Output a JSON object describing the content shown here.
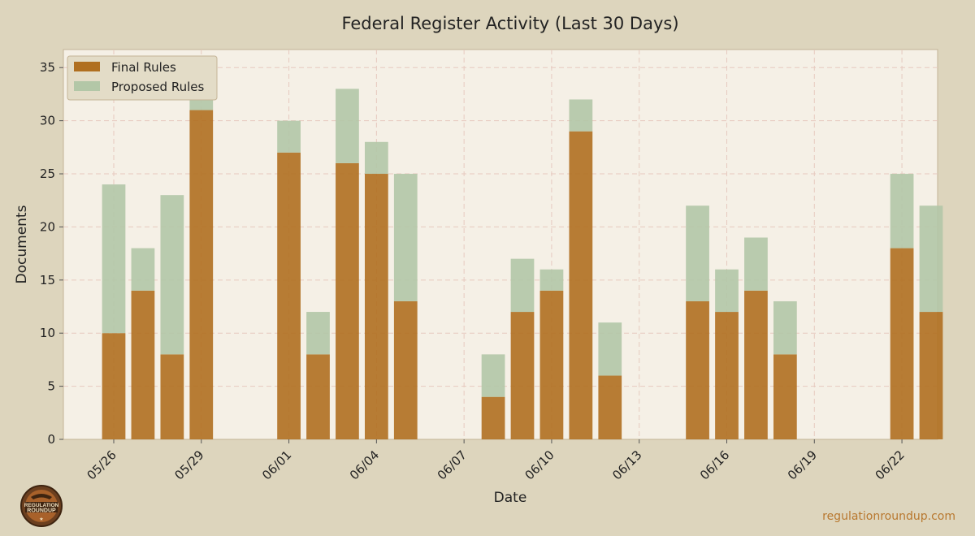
{
  "chart_data": {
    "type": "bar",
    "stacked": true,
    "title": "Federal Register Activity (Last 30 Days)",
    "xlabel": "Date",
    "ylabel": "Documents",
    "ylim": [
      0,
      36.7
    ],
    "yticks": [
      0,
      5,
      10,
      15,
      20,
      25,
      30,
      35
    ],
    "xticks": [
      "05/26",
      "05/29",
      "06/01",
      "06/04",
      "06/07",
      "06/10",
      "06/13",
      "06/16",
      "06/19",
      "06/22"
    ],
    "dates": [
      "05/26",
      "05/27",
      "05/28",
      "05/29",
      "05/30",
      "05/31",
      "06/01",
      "06/02",
      "06/03",
      "06/04",
      "06/05",
      "06/06",
      "06/07",
      "06/08",
      "06/09",
      "06/10",
      "06/11",
      "06/12",
      "06/13",
      "06/14",
      "06/15",
      "06/16",
      "06/17",
      "06/18",
      "06/19",
      "06/20",
      "06/21",
      "06/22",
      "06/23"
    ],
    "series": [
      {
        "name": "Final Rules",
        "color": "#b06f20",
        "values": [
          10,
          14,
          8,
          31,
          0,
          0,
          27,
          8,
          26,
          25,
          13,
          0,
          0,
          4,
          12,
          14,
          29,
          6,
          0,
          0,
          13,
          12,
          14,
          8,
          0,
          0,
          0,
          18,
          12
        ]
      },
      {
        "name": "Proposed Rules",
        "color": "#b3c7a7",
        "values": [
          14,
          4,
          15,
          4,
          0,
          0,
          3,
          4,
          7,
          3,
          12,
          0,
          0,
          4,
          5,
          2,
          3,
          5,
          0,
          0,
          9,
          4,
          5,
          5,
          0,
          0,
          0,
          7,
          10
        ]
      }
    ],
    "grid": true,
    "legend_position": "top-left",
    "colors": {
      "background": "#ddd5bd",
      "plot_bg": "#f5f0e6",
      "grid": "#e6c9bf"
    }
  },
  "footer": {
    "url": "regulationroundup.com",
    "logo_text_line1": "REGULATION",
    "logo_text_line2": "ROUNDUP"
  }
}
